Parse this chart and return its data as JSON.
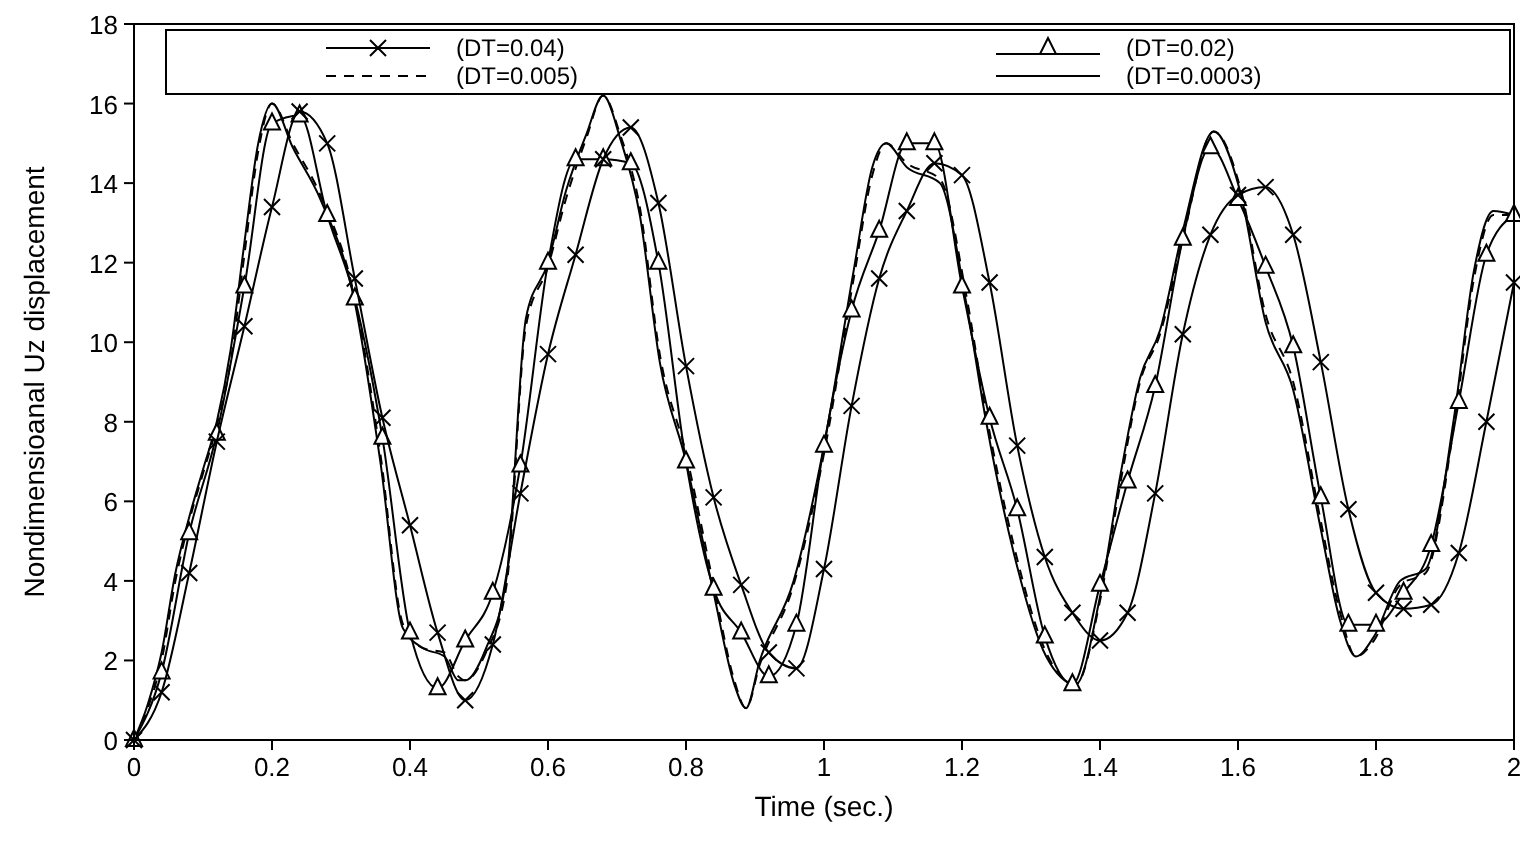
{
  "chart_data": {
    "type": "line",
    "xlabel": "Time (sec.)",
    "ylabel": "Nondimensioanal Uz displacement",
    "xlim": [
      0,
      2
    ],
    "ylim": [
      0,
      18
    ],
    "xticks": [
      0,
      0.2,
      0.4,
      0.6,
      0.8,
      1,
      1.2,
      1.4,
      1.6,
      1.8,
      2
    ],
    "yticks": [
      0,
      2,
      4,
      6,
      8,
      10,
      12,
      14,
      16,
      18
    ],
    "legend": "top",
    "grid": false,
    "series": [
      {
        "name": "(DT=0.04)",
        "color": "#000000",
        "marker": "cross",
        "line_style": "solid",
        "x": [
          0,
          0.04,
          0.08,
          0.12,
          0.16,
          0.2,
          0.24,
          0.28,
          0.32,
          0.36,
          0.4,
          0.44,
          0.48,
          0.52,
          0.56,
          0.6,
          0.64,
          0.68,
          0.72,
          0.76,
          0.8,
          0.84,
          0.88,
          0.92,
          0.96,
          1,
          1.04,
          1.08,
          1.12,
          1.16,
          1.2,
          1.24,
          1.28,
          1.32,
          1.36,
          1.4,
          1.44,
          1.48,
          1.52,
          1.56,
          1.6,
          1.64,
          1.68,
          1.72,
          1.76,
          1.8,
          1.84,
          1.88,
          1.92,
          1.96,
          2
        ],
        "values": [
          0,
          1.2,
          4.2,
          7.5,
          10.4,
          13.4,
          15.8,
          15.0,
          11.6,
          8.1,
          5.4,
          2.7,
          1.0,
          2.4,
          6.2,
          9.7,
          12.2,
          14.6,
          15.4,
          13.5,
          9.4,
          6.1,
          3.9,
          2.2,
          1.8,
          4.3,
          8.4,
          11.6,
          13.3,
          14.5,
          14.2,
          11.5,
          7.4,
          4.6,
          3.2,
          2.5,
          3.2,
          6.2,
          10.2,
          12.7,
          13.7,
          13.9,
          12.7,
          9.5,
          5.8,
          3.7,
          3.3,
          3.4,
          4.7,
          8.0,
          11.5
        ]
      },
      {
        "name": "(DT=0.02)",
        "color": "#000000",
        "marker": "triangle",
        "line_style": "solid",
        "x": [
          0,
          0.04,
          0.08,
          0.12,
          0.16,
          0.2,
          0.24,
          0.28,
          0.32,
          0.36,
          0.4,
          0.44,
          0.48,
          0.52,
          0.56,
          0.6,
          0.64,
          0.68,
          0.72,
          0.76,
          0.8,
          0.84,
          0.88,
          0.92,
          0.96,
          1,
          1.04,
          1.08,
          1.12,
          1.16,
          1.2,
          1.24,
          1.28,
          1.32,
          1.36,
          1.4,
          1.44,
          1.48,
          1.52,
          1.56,
          1.6,
          1.64,
          1.68,
          1.72,
          1.76,
          1.8,
          1.84,
          1.88,
          1.92,
          1.96,
          2
        ],
        "values": [
          0,
          1.7,
          5.2,
          7.7,
          11.4,
          15.5,
          15.7,
          13.2,
          11.1,
          7.6,
          2.7,
          1.3,
          2.5,
          3.7,
          6.9,
          12.0,
          14.6,
          14.6,
          14.5,
          12.0,
          7.0,
          3.8,
          2.7,
          1.6,
          2.9,
          7.4,
          10.8,
          12.8,
          15.0,
          15.0,
          11.4,
          8.1,
          5.8,
          2.6,
          1.4,
          3.9,
          6.5,
          8.9,
          12.6,
          14.9,
          13.6,
          11.9,
          9.9,
          6.1,
          2.9,
          2.9,
          3.7,
          4.9,
          8.5,
          12.2,
          13.2
        ]
      },
      {
        "name": "(DT=0.005)",
        "color": "#000000",
        "marker": "none",
        "line_style": "dashed",
        "x": [
          0,
          0.02,
          0.04,
          0.06,
          0.08,
          0.1,
          0.12,
          0.14,
          0.16,
          0.18,
          0.2,
          0.23,
          0.27,
          0.32,
          0.357,
          0.39,
          0.42,
          0.45,
          0.47,
          0.48,
          0.51,
          0.54,
          0.568,
          0.6,
          0.626,
          0.655,
          0.68,
          0.705,
          0.733,
          0.762,
          0.8,
          0.84,
          0.87,
          0.887,
          0.907,
          0.956,
          1,
          1.043,
          1.07,
          1.09,
          1.12,
          1.168,
          1.206,
          1.235,
          1.275,
          1.322,
          1.365,
          1.4,
          1.43,
          1.458,
          1.487,
          1.52,
          1.565,
          1.603,
          1.64,
          1.68,
          1.72,
          1.748,
          1.771,
          1.797,
          1.835,
          1.872,
          1.913,
          1.942,
          1.97,
          2
        ],
        "values": [
          0,
          0.8,
          2.0,
          4.0,
          5.5,
          6.7,
          7.9,
          9.5,
          12.2,
          14.8,
          16.0,
          15.0,
          13.7,
          11.1,
          7.2,
          2.9,
          2.3,
          2.2,
          1.6,
          1.5,
          2.2,
          3.9,
          10.4,
          11.9,
          13.6,
          15.1,
          16.2,
          15.2,
          13.4,
          9.7,
          7.2,
          3.9,
          1.5,
          0.8,
          1.9,
          3.9,
          7.2,
          11.6,
          14.2,
          15.0,
          14.5,
          14.1,
          11.2,
          8.2,
          4.9,
          2.2,
          1.4,
          3.5,
          6.5,
          9.0,
          10.2,
          12.6,
          15.3,
          13.9,
          10.7,
          9.0,
          5.5,
          3.2,
          2.1,
          2.5,
          3.9,
          4.2,
          7.9,
          11.6,
          13.2,
          13.2
        ]
      },
      {
        "name": "(DT=0.0003)",
        "color": "#000000",
        "marker": "none",
        "line_style": "solid",
        "x": [
          0,
          0.02,
          0.04,
          0.06,
          0.08,
          0.1,
          0.12,
          0.14,
          0.16,
          0.18,
          0.2,
          0.23,
          0.27,
          0.32,
          0.357,
          0.39,
          0.42,
          0.45,
          0.47,
          0.48,
          0.51,
          0.54,
          0.568,
          0.6,
          0.626,
          0.655,
          0.68,
          0.705,
          0.733,
          0.762,
          0.8,
          0.84,
          0.87,
          0.887,
          0.907,
          0.956,
          1,
          1.043,
          1.07,
          1.09,
          1.12,
          1.168,
          1.206,
          1.235,
          1.275,
          1.322,
          1.365,
          1.4,
          1.43,
          1.458,
          1.487,
          1.52,
          1.565,
          1.603,
          1.64,
          1.68,
          1.72,
          1.748,
          1.771,
          1.797,
          1.835,
          1.872,
          1.913,
          1.942,
          1.97,
          2
        ],
        "values": [
          0,
          0.9,
          2.2,
          4.2,
          5.6,
          6.8,
          8.0,
          9.8,
          12.5,
          15.0,
          16.0,
          14.9,
          13.6,
          11.0,
          7.0,
          2.8,
          2.3,
          2.1,
          1.5,
          1.5,
          2.3,
          4.1,
          10.6,
          12.0,
          13.8,
          15.2,
          16.2,
          15.1,
          13.2,
          9.5,
          7.0,
          3.7,
          1.4,
          0.8,
          2.0,
          4.0,
          7.4,
          11.8,
          14.4,
          15.0,
          14.4,
          14.0,
          11.0,
          8.0,
          4.7,
          2.1,
          1.4,
          3.6,
          6.7,
          9.1,
          10.3,
          12.8,
          15.3,
          13.8,
          10.5,
          8.8,
          5.3,
          3.0,
          2.1,
          2.6,
          4.0,
          4.3,
          8.1,
          11.8,
          13.3,
          13.2
        ]
      }
    ]
  }
}
